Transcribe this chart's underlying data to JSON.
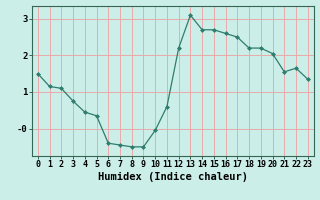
{
  "x": [
    0,
    1,
    2,
    3,
    4,
    5,
    6,
    7,
    8,
    9,
    10,
    11,
    12,
    13,
    14,
    15,
    16,
    17,
    18,
    19,
    20,
    21,
    22,
    23
  ],
  "y": [
    1.5,
    1.15,
    1.1,
    0.75,
    0.45,
    0.35,
    -0.4,
    -0.45,
    -0.5,
    -0.5,
    -0.05,
    0.6,
    2.2,
    3.1,
    2.7,
    2.7,
    2.6,
    2.5,
    2.2,
    2.2,
    2.05,
    1.55,
    1.65,
    1.35
  ],
  "line_color": "#2e7d6e",
  "marker": "D",
  "marker_size": 2.0,
  "bg_color": "#cceee8",
  "grid_color": "#e8aaaa",
  "axis_color": "#336655",
  "xlabel": "Humidex (Indice chaleur)",
  "xlim": [
    -0.5,
    23.5
  ],
  "ylim": [
    -0.75,
    3.35
  ],
  "ytick_vals": [
    0,
    1,
    2,
    3
  ],
  "ytick_labels": [
    "-0",
    "1",
    "2",
    "3"
  ],
  "xticks": [
    0,
    1,
    2,
    3,
    4,
    5,
    6,
    7,
    8,
    9,
    10,
    11,
    12,
    13,
    14,
    15,
    16,
    17,
    18,
    19,
    20,
    21,
    22,
    23
  ],
  "xlabel_fontsize": 7.5,
  "tick_fontsize": 6.0
}
